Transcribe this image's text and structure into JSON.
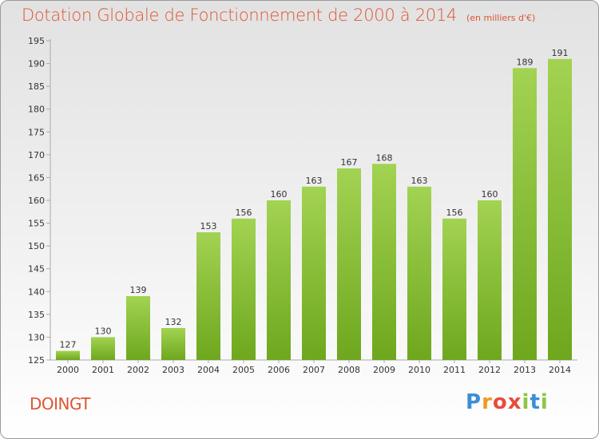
{
  "title": "Dotation Globale de Fonctionnement de 2000 à 2014",
  "unit": "(en milliers d'€)",
  "commune": "DOINGT",
  "brand": {
    "letters": [
      "P",
      "r",
      "o",
      "x",
      "i",
      "t",
      "i"
    ],
    "colors": [
      "#3b8fd6",
      "#f29a1f",
      "#e84c3d",
      "#e84c3d",
      "#8dc63f",
      "#3b8fd6",
      "#8dc63f"
    ]
  },
  "colors": {
    "bar_top": "#a2d352",
    "bar_bottom": "#6ea71e",
    "title": "#dd5533"
  },
  "chart_data": {
    "type": "bar",
    "categories": [
      "2000",
      "2001",
      "2002",
      "2003",
      "2004",
      "2005",
      "2006",
      "2007",
      "2008",
      "2009",
      "2010",
      "2011",
      "2012",
      "2013",
      "2014"
    ],
    "values": [
      127,
      130,
      139,
      132,
      153,
      156,
      160,
      163,
      167,
      168,
      163,
      156,
      160,
      189,
      191
    ],
    "ylim": [
      125,
      195
    ],
    "yticks": [
      125,
      130,
      135,
      140,
      145,
      150,
      155,
      160,
      165,
      170,
      175,
      180,
      185,
      190,
      195
    ],
    "grid": false,
    "legend": "none"
  }
}
